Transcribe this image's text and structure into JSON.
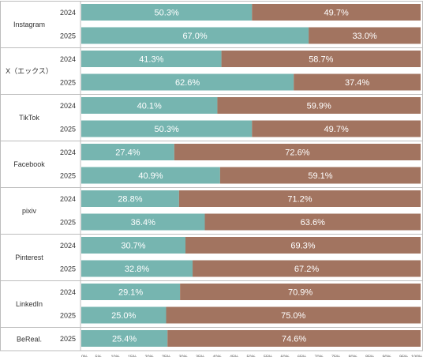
{
  "chart_data": {
    "type": "bar",
    "orientation": "horizontal",
    "stacked": true,
    "normalized": true,
    "colors": {
      "series_a": "#76b5b0",
      "series_b": "#a27460"
    },
    "xlim": [
      0,
      100
    ],
    "x_ticks": [
      "0%",
      "5%",
      "10%",
      "15%",
      "20%",
      "25%",
      "30%",
      "35%",
      "40%",
      "45%",
      "50%",
      "55%",
      "60%",
      "65%",
      "70%",
      "75%",
      "80%",
      "85%",
      "90%",
      "95%",
      "100%"
    ],
    "groups": [
      {
        "platform": "Instagram",
        "rows": [
          {
            "year": "2024",
            "values": [
              50.3,
              49.7
            ],
            "labels": [
              "50.3%",
              "49.7%"
            ]
          },
          {
            "year": "2025",
            "values": [
              67.0,
              33.0
            ],
            "labels": [
              "67.0%",
              "33.0%"
            ]
          }
        ]
      },
      {
        "platform": "X（エックス）",
        "rows": [
          {
            "year": "2024",
            "values": [
              41.3,
              58.7
            ],
            "labels": [
              "41.3%",
              "58.7%"
            ]
          },
          {
            "year": "2025",
            "values": [
              62.6,
              37.4
            ],
            "labels": [
              "62.6%",
              "37.4%"
            ]
          }
        ]
      },
      {
        "platform": "TikTok",
        "rows": [
          {
            "year": "2024",
            "values": [
              40.1,
              59.9
            ],
            "labels": [
              "40.1%",
              "59.9%"
            ]
          },
          {
            "year": "2025",
            "values": [
              50.3,
              49.7
            ],
            "labels": [
              "50.3%",
              "49.7%"
            ]
          }
        ]
      },
      {
        "platform": "Facebook",
        "rows": [
          {
            "year": "2024",
            "values": [
              27.4,
              72.6
            ],
            "labels": [
              "27.4%",
              "72.6%"
            ]
          },
          {
            "year": "2025",
            "values": [
              40.9,
              59.1
            ],
            "labels": [
              "40.9%",
              "59.1%"
            ]
          }
        ]
      },
      {
        "platform": "pixiv",
        "rows": [
          {
            "year": "2024",
            "values": [
              28.8,
              71.2
            ],
            "labels": [
              "28.8%",
              "71.2%"
            ]
          },
          {
            "year": "2025",
            "values": [
              36.4,
              63.6
            ],
            "labels": [
              "36.4%",
              "63.6%"
            ]
          }
        ]
      },
      {
        "platform": "Pinterest",
        "rows": [
          {
            "year": "2024",
            "values": [
              30.7,
              69.3
            ],
            "labels": [
              "30.7%",
              "69.3%"
            ]
          },
          {
            "year": "2025",
            "values": [
              32.8,
              67.2
            ],
            "labels": [
              "32.8%",
              "67.2%"
            ]
          }
        ]
      },
      {
        "platform": "LinkedIn",
        "rows": [
          {
            "year": "2024",
            "values": [
              29.1,
              70.9
            ],
            "labels": [
              "29.1%",
              "70.9%"
            ]
          },
          {
            "year": "2025",
            "values": [
              25.0,
              75.0
            ],
            "labels": [
              "25.0%",
              "75.0%"
            ]
          }
        ]
      },
      {
        "platform": "BeReal.",
        "rows": [
          {
            "year": "2025",
            "values": [
              25.4,
              74.6
            ],
            "labels": [
              "25.4%",
              "74.6%"
            ]
          }
        ]
      }
    ]
  }
}
